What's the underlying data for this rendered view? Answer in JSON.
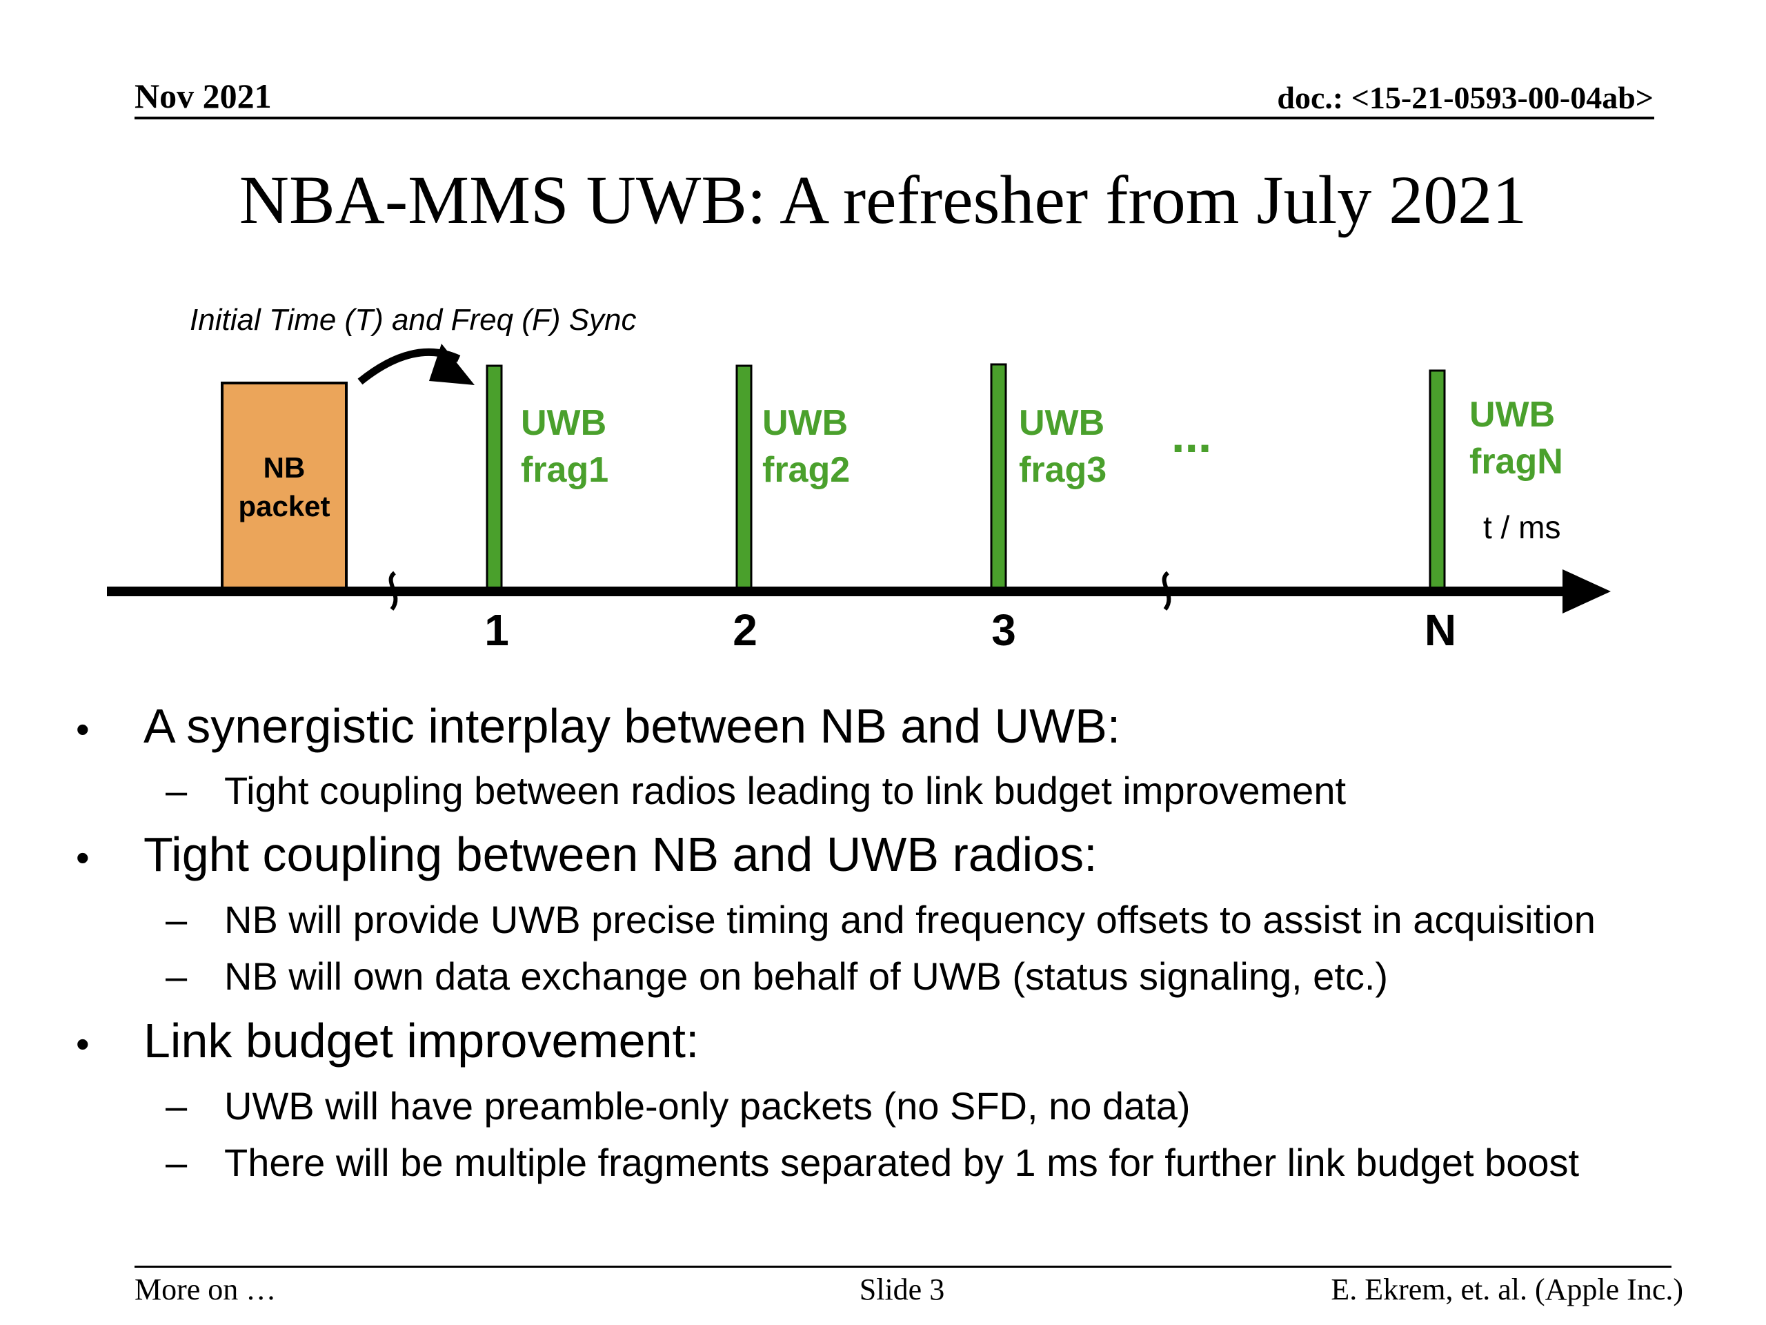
{
  "header": {
    "date": "Nov 2021",
    "doc_id": "doc.: <15-21-0593-00-04ab>"
  },
  "title": "NBA-MMS UWB: A refresher from July 2021",
  "diagram": {
    "sync_label": "Initial Time (T) and Freq (F) Sync",
    "nb_packet": [
      "NB",
      "packet"
    ],
    "fragments": [
      {
        "line1": "UWB",
        "line2": "frag1",
        "tick": "1"
      },
      {
        "line1": "UWB",
        "line2": "frag2",
        "tick": "2"
      },
      {
        "line1": "UWB",
        "line2": "frag3",
        "tick": "3"
      },
      {
        "line1": "UWB",
        "line2": "fragN",
        "tick": "N"
      }
    ],
    "ellipsis": "...",
    "axis_label": "t / ms",
    "colors": {
      "uwb_green": "#4aa02c",
      "nb_orange": "#eba55a"
    }
  },
  "bullets": [
    {
      "text": "A  synergistic interplay between NB and UWB:",
      "subs": [
        "Tight coupling between radios leading to link budget improvement"
      ]
    },
    {
      "text": "Tight coupling between NB and UWB radios:",
      "subs": [
        "NB will provide UWB precise timing and frequency offsets to assist in acquisition",
        "NB will own data exchange on behalf of UWB (status signaling, etc.)"
      ]
    },
    {
      "text": "Link budget improvement:",
      "subs": [
        "UWB will have preamble-only packets (no SFD, no data)",
        "There will be multiple fragments separated by 1 ms for further link budget boost"
      ]
    }
  ],
  "markers": {
    "bullet": "•",
    "dash": "–"
  },
  "footer": {
    "left": "More on …",
    "center": "Slide 3",
    "right": "E. Ekrem, et. al. (Apple Inc.)"
  }
}
